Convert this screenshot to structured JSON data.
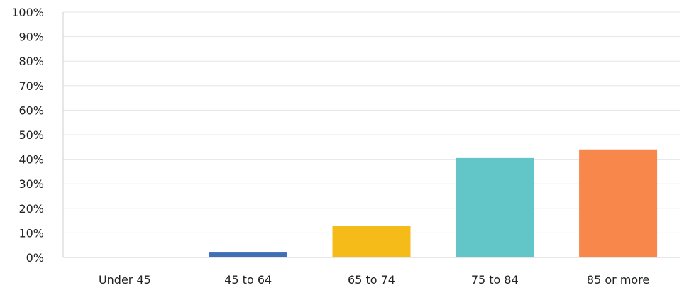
{
  "chart_data": {
    "type": "bar",
    "categories": [
      "Under 45",
      "45 to 64",
      "65 to 74",
      "75 to 84",
      "85 or more"
    ],
    "values": [
      0,
      2,
      13,
      40.5,
      44
    ],
    "colors": [
      "#3f6fb5",
      "#3f6fb5",
      "#f5bb18",
      "#62c5c8",
      "#f7874b"
    ],
    "ylim": [
      0,
      100
    ],
    "yticks": [
      0,
      10,
      20,
      30,
      40,
      50,
      60,
      70,
      80,
      90,
      100
    ],
    "ytick_labels": [
      "0%",
      "10%",
      "20%",
      "30%",
      "40%",
      "50%",
      "60%",
      "70%",
      "80%",
      "90%",
      "100%"
    ],
    "grid": true,
    "title": "",
    "xlabel": "",
    "ylabel": ""
  }
}
